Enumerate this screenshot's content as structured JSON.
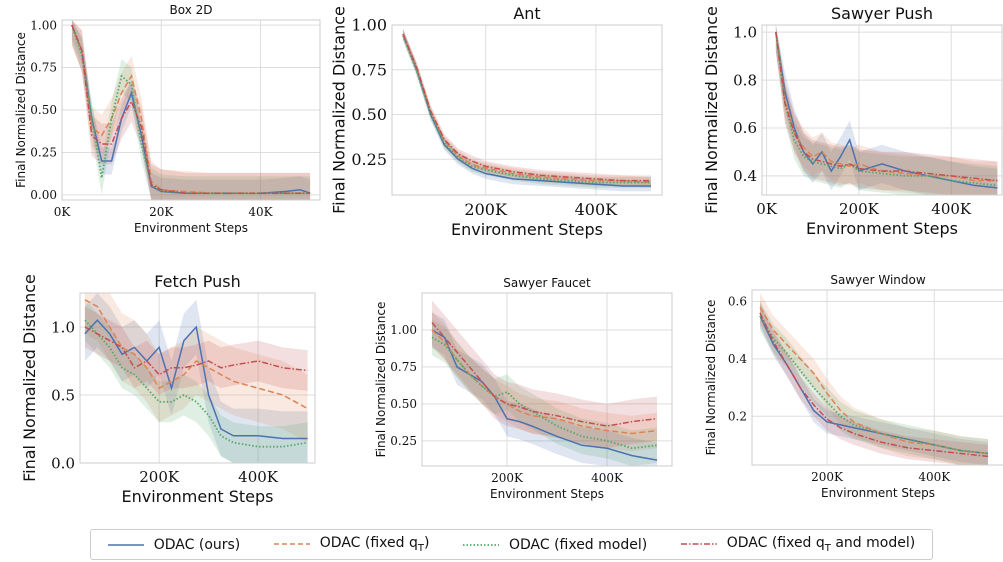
{
  "legend": {
    "items": [
      {
        "label": "ODAC (ours)",
        "color": "#4c72b0",
        "dash": "solid"
      },
      {
        "label": "ODAC (fixed q",
        "sub": "T",
        "tail": ")",
        "color": "#dd8452",
        "dash": "dashed"
      },
      {
        "label": "ODAC (fixed model)",
        "color": "#55a868",
        "dash": "dotted"
      },
      {
        "label": "ODAC (fixed q",
        "sub": "T",
        "tail": " and model)",
        "color": "#c44e52",
        "dash": "dashdot"
      }
    ]
  },
  "chart_data": [
    {
      "type": "line",
      "title": "Box 2D",
      "xlabel": "Environment Steps",
      "ylabel": "Final Normalized Distance",
      "xlim": [
        0,
        52000
      ],
      "ylim": [
        -0.03,
        1.03
      ],
      "xticks": [
        0,
        20000,
        40000
      ],
      "xticklabels": [
        "0K",
        "20K",
        "40K"
      ],
      "yticks": [
        0,
        0.25,
        0.5,
        0.75,
        1.0
      ],
      "yticklabels": [
        "0.00",
        "0.25",
        "0.50",
        "0.75",
        "1.00"
      ],
      "grid": true,
      "x": [
        2000,
        4000,
        6000,
        8000,
        10000,
        12000,
        14000,
        16000,
        18000,
        20000,
        25000,
        30000,
        35000,
        40000,
        45000,
        48000,
        50000
      ],
      "series": [
        {
          "name": "ODAC (ours)",
          "values": [
            1.0,
            0.85,
            0.45,
            0.2,
            0.2,
            0.45,
            0.6,
            0.35,
            0.05,
            0.02,
            0.01,
            0.01,
            0.01,
            0.01,
            0.02,
            0.03,
            0.01
          ],
          "band": 0.08
        },
        {
          "name": "ODAC (fixed qT)",
          "values": [
            1.0,
            0.85,
            0.4,
            0.35,
            0.45,
            0.6,
            0.7,
            0.45,
            0.08,
            0.03,
            0.02,
            0.01,
            0.01,
            0.01,
            0.01,
            0.01,
            0.01
          ],
          "band": 0.12
        },
        {
          "name": "ODAC (fixed model)",
          "values": [
            1.0,
            0.82,
            0.45,
            0.1,
            0.45,
            0.7,
            0.65,
            0.3,
            0.06,
            0.02,
            0.01,
            0.01,
            0.01,
            0.01,
            0.01,
            0.01,
            0.01
          ],
          "band": 0.1
        },
        {
          "name": "ODAC (fixed qT and model)",
          "values": [
            1.0,
            0.85,
            0.35,
            0.3,
            0.3,
            0.45,
            0.55,
            0.4,
            0.06,
            0.03,
            0.01,
            0.01,
            0.01,
            0.01,
            0.01,
            0.01,
            0.01
          ],
          "band": 0.12
        }
      ]
    },
    {
      "type": "line",
      "title": "Ant",
      "xlabel": "Environment Steps",
      "ylabel": "Final Normalized Distance",
      "xlim": [
        30000,
        520000
      ],
      "ylim": [
        0.05,
        1.0
      ],
      "xticks": [
        200000,
        400000
      ],
      "xticklabels": [
        "200K",
        "400K"
      ],
      "yticks": [
        0.25,
        0.5,
        0.75,
        1.0
      ],
      "yticklabels": [
        "0.25",
        "0.50",
        "0.75",
        "1.00"
      ],
      "grid": true,
      "x": [
        50000,
        75000,
        100000,
        125000,
        150000,
        175000,
        200000,
        250000,
        300000,
        350000,
        400000,
        450000,
        500000
      ],
      "series": [
        {
          "name": "ODAC (ours)",
          "values": [
            0.95,
            0.75,
            0.5,
            0.33,
            0.25,
            0.2,
            0.17,
            0.14,
            0.13,
            0.12,
            0.11,
            0.1,
            0.1
          ],
          "band": 0.03
        },
        {
          "name": "ODAC (fixed qT)",
          "values": [
            0.95,
            0.76,
            0.52,
            0.35,
            0.27,
            0.22,
            0.2,
            0.17,
            0.15,
            0.14,
            0.13,
            0.13,
            0.12
          ],
          "band": 0.03
        },
        {
          "name": "ODAC (fixed model)",
          "values": [
            0.94,
            0.74,
            0.5,
            0.34,
            0.26,
            0.21,
            0.19,
            0.16,
            0.14,
            0.13,
            0.12,
            0.12,
            0.12
          ],
          "band": 0.03
        },
        {
          "name": "ODAC (fixed qT and model)",
          "values": [
            0.95,
            0.76,
            0.52,
            0.36,
            0.28,
            0.24,
            0.21,
            0.18,
            0.16,
            0.15,
            0.14,
            0.13,
            0.13
          ],
          "band": 0.03
        }
      ]
    },
    {
      "type": "line",
      "title": "Sawyer Push",
      "xlabel": "Environment Steps",
      "ylabel": "Final Normalized Distance",
      "xlim": [
        -10000,
        510000
      ],
      "ylim": [
        0.32,
        1.03
      ],
      "xticks": [
        0,
        200000,
        400000
      ],
      "xticklabels": [
        "0K",
        "200K",
        "400K"
      ],
      "yticks": [
        0.4,
        0.6,
        0.8,
        1.0
      ],
      "yticklabels": [
        "0.4",
        "0.6",
        "0.8",
        "1.0"
      ],
      "grid": true,
      "x": [
        20000,
        40000,
        60000,
        80000,
        100000,
        120000,
        140000,
        160000,
        180000,
        200000,
        250000,
        300000,
        350000,
        400000,
        450000,
        500000
      ],
      "series": [
        {
          "name": "ODAC (ours)",
          "values": [
            1.0,
            0.75,
            0.6,
            0.5,
            0.45,
            0.5,
            0.42,
            0.48,
            0.55,
            0.42,
            0.45,
            0.42,
            0.4,
            0.38,
            0.36,
            0.35
          ],
          "band": 0.08
        },
        {
          "name": "ODAC (fixed qT)",
          "values": [
            1.0,
            0.72,
            0.58,
            0.52,
            0.48,
            0.5,
            0.46,
            0.45,
            0.44,
            0.45,
            0.42,
            0.41,
            0.4,
            0.4,
            0.38,
            0.38
          ],
          "band": 0.08
        },
        {
          "name": "ODAC (fixed model)",
          "values": [
            1.0,
            0.7,
            0.55,
            0.48,
            0.46,
            0.45,
            0.44,
            0.43,
            0.45,
            0.42,
            0.41,
            0.4,
            0.4,
            0.38,
            0.37,
            0.36
          ],
          "band": 0.08
        },
        {
          "name": "ODAC (fixed qT and model)",
          "values": [
            1.0,
            0.7,
            0.58,
            0.5,
            0.47,
            0.46,
            0.45,
            0.44,
            0.45,
            0.43,
            0.42,
            0.42,
            0.41,
            0.4,
            0.39,
            0.38
          ],
          "band": 0.08
        }
      ]
    },
    {
      "type": "line",
      "title": "Fetch Push",
      "xlabel": "Environment Steps",
      "ylabel": "Final Normalized Distance",
      "xlim": [
        40000,
        515000
      ],
      "ylim": [
        0.0,
        1.25
      ],
      "xticks": [
        200000,
        400000
      ],
      "xticklabels": [
        "200K",
        "400K"
      ],
      "yticks": [
        0.0,
        0.5,
        1.0
      ],
      "yticklabels": [
        "0.0",
        "0.5",
        "1.0"
      ],
      "grid": true,
      "x": [
        50000,
        75000,
        100000,
        125000,
        150000,
        175000,
        200000,
        225000,
        250000,
        275000,
        300000,
        325000,
        350000,
        400000,
        450000,
        500000
      ],
      "series": [
        {
          "name": "ODAC (ours)",
          "values": [
            0.95,
            1.05,
            0.95,
            0.8,
            0.85,
            0.75,
            0.85,
            0.55,
            0.9,
            1.0,
            0.5,
            0.25,
            0.2,
            0.2,
            0.18,
            0.18
          ],
          "band": 0.2
        },
        {
          "name": "ODAC (fixed qT)",
          "values": [
            1.2,
            1.15,
            1.0,
            0.85,
            0.8,
            0.7,
            0.55,
            0.6,
            0.65,
            0.75,
            0.7,
            0.65,
            0.6,
            0.55,
            0.5,
            0.4
          ],
          "band": 0.25
        },
        {
          "name": "ODAC (fixed model)",
          "values": [
            1.05,
            0.95,
            0.85,
            0.7,
            0.65,
            0.55,
            0.45,
            0.45,
            0.5,
            0.45,
            0.35,
            0.2,
            0.15,
            0.12,
            0.12,
            0.15
          ],
          "band": 0.15
        },
        {
          "name": "ODAC (fixed qT and model)",
          "values": [
            1.0,
            0.95,
            0.9,
            0.85,
            0.7,
            0.75,
            0.65,
            0.7,
            0.7,
            0.72,
            0.75,
            0.7,
            0.72,
            0.75,
            0.7,
            0.68
          ],
          "band": 0.15
        }
      ]
    },
    {
      "type": "line",
      "title": "Sawyer Faucet",
      "xlabel": "Environment Steps",
      "ylabel": "Final Normalized Distance",
      "xlim": [
        30000,
        530000
      ],
      "ylim": [
        0.08,
        1.25
      ],
      "xticks": [
        200000,
        400000
      ],
      "xticklabels": [
        "200K",
        "400K"
      ],
      "yticks": [
        0.25,
        0.5,
        0.75,
        1.0
      ],
      "yticklabels": [
        "0.25",
        "0.50",
        "0.75",
        "1.00"
      ],
      "grid": true,
      "x": [
        50000,
        75000,
        100000,
        125000,
        150000,
        175000,
        200000,
        225000,
        250000,
        300000,
        350000,
        400000,
        450000,
        500000
      ],
      "series": [
        {
          "name": "ODAC (ours)",
          "values": [
            1.0,
            0.95,
            0.75,
            0.7,
            0.65,
            0.55,
            0.4,
            0.38,
            0.35,
            0.28,
            0.22,
            0.2,
            0.15,
            0.12
          ],
          "band": 0.12
        },
        {
          "name": "ODAC (fixed qT)",
          "values": [
            1.0,
            0.92,
            0.8,
            0.7,
            0.62,
            0.55,
            0.5,
            0.45,
            0.42,
            0.4,
            0.35,
            0.32,
            0.3,
            0.32
          ],
          "band": 0.12
        },
        {
          "name": "ODAC (fixed model)",
          "values": [
            0.95,
            0.9,
            0.8,
            0.7,
            0.62,
            0.55,
            0.58,
            0.5,
            0.45,
            0.35,
            0.28,
            0.25,
            0.2,
            0.22
          ],
          "band": 0.12
        },
        {
          "name": "ODAC (fixed qT and model)",
          "values": [
            1.05,
            0.95,
            0.85,
            0.75,
            0.65,
            0.55,
            0.5,
            0.48,
            0.45,
            0.42,
            0.38,
            0.35,
            0.38,
            0.4
          ],
          "band": 0.15
        }
      ]
    },
    {
      "type": "line",
      "title": "Sawyer Window",
      "xlabel": "Environment Steps",
      "ylabel": "Final Normalized Distance",
      "xlim": [
        60000,
        530000
      ],
      "ylim": [
        0.03,
        0.64
      ],
      "xticks": [
        200000,
        400000
      ],
      "xticklabels": [
        "200K",
        "400K"
      ],
      "yticks": [
        0.2,
        0.4,
        0.6
      ],
      "yticklabels": [
        "0.2",
        "0.4",
        "0.6"
      ],
      "grid": true,
      "x": [
        75000,
        100000,
        125000,
        150000,
        175000,
        200000,
        225000,
        250000,
        300000,
        350000,
        400000,
        450000,
        500000
      ],
      "series": [
        {
          "name": "ODAC (ours)",
          "values": [
            0.55,
            0.45,
            0.38,
            0.3,
            0.22,
            0.18,
            0.17,
            0.16,
            0.14,
            0.12,
            0.1,
            0.08,
            0.07
          ],
          "band": 0.04
        },
        {
          "name": "ODAC (fixed qT)",
          "values": [
            0.58,
            0.5,
            0.45,
            0.4,
            0.35,
            0.28,
            0.22,
            0.18,
            0.14,
            0.11,
            0.1,
            0.08,
            0.07
          ],
          "band": 0.05
        },
        {
          "name": "ODAC (fixed model)",
          "values": [
            0.55,
            0.47,
            0.42,
            0.36,
            0.3,
            0.25,
            0.2,
            0.17,
            0.14,
            0.12,
            0.1,
            0.08,
            0.07
          ],
          "band": 0.05
        },
        {
          "name": "ODAC (fixed qT and model)",
          "values": [
            0.56,
            0.46,
            0.38,
            0.3,
            0.24,
            0.19,
            0.16,
            0.14,
            0.11,
            0.09,
            0.08,
            0.07,
            0.06
          ],
          "band": 0.04
        }
      ]
    }
  ]
}
